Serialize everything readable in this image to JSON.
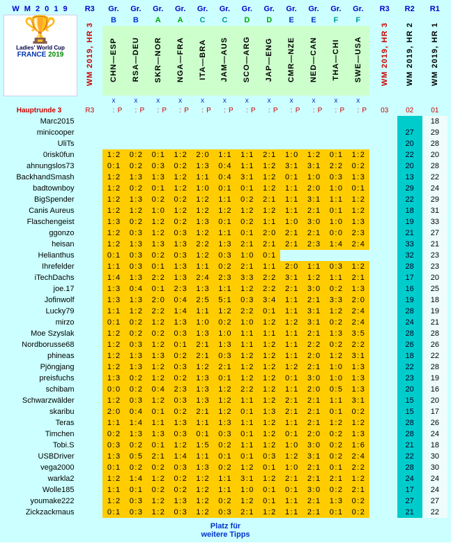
{
  "title": "W M   2 0 1 9",
  "header": {
    "r3": "R3",
    "gr": "Gr.",
    "r2": "R2",
    "r1": "R1"
  },
  "logo": {
    "caption": "Ladies' World Cup",
    "france": "FRANCE",
    "year": "2019"
  },
  "vlabels": {
    "wmhr3": "WM 2019, HR 3",
    "hr2": "WM  2019, HR 2",
    "hr1": "WM  2019, HR 1"
  },
  "groups": [
    "B",
    "B",
    "A",
    "A",
    "C",
    "C",
    "D",
    "D",
    "E",
    "E",
    "F",
    "F"
  ],
  "matches": [
    "CHN—ESP",
    "RSA—DEU",
    "SKR—NOR",
    "NGA—FRA",
    "ITA—BRA",
    "JAM—AUS",
    "SCO—ARG",
    "JAP—ENG",
    "CMR—NZE",
    "NED—CAN",
    "THA—CHI",
    "SWE—USA"
  ],
  "round_label": "Hauptrunde  3",
  "r_nums": {
    "r3": "03",
    "r2": "02",
    "r1": "01"
  },
  "footer1": "Platz für",
  "footer2": "weitere Tipps",
  "rows": [
    {
      "n": "Marc2015",
      "s": [
        "",
        "",
        "",
        "",
        "",
        "",
        "",
        "",
        "",
        "",
        "",
        ""
      ],
      "r3": "",
      "r2": "",
      "r1": "18"
    },
    {
      "n": "minicooper",
      "s": [
        "",
        "",
        "",
        "",
        "",
        "",
        "",
        "",
        "",
        "",
        "",
        ""
      ],
      "r3": "",
      "r2": "27",
      "r1": "29"
    },
    {
      "n": "UliTs",
      "s": [
        "",
        "",
        "",
        "",
        "",
        "",
        "",
        "",
        "",
        "",
        "",
        ""
      ],
      "r3": "",
      "r2": "20",
      "r1": "28"
    },
    {
      "n": "0risk0fun",
      "s": [
        "1:2",
        "0:2",
        "0:1",
        "1:2",
        "2:0",
        "1:1",
        "1:1",
        "2:1",
        "1:0",
        "1:2",
        "0:1",
        "1:2"
      ],
      "r3": "",
      "r2": "22",
      "r1": "20"
    },
    {
      "n": "ahnungslos73",
      "s": [
        "0:1",
        "0:2",
        "0:3",
        "0:2",
        "1:3",
        "0:4",
        "1:1",
        "1:2",
        "3:1",
        "3:1",
        "2:2",
        "0:2"
      ],
      "r3": "",
      "r2": "20",
      "r1": "28"
    },
    {
      "n": "BackhandSmash",
      "s": [
        "1:2",
        "1:3",
        "1:3",
        "1:2",
        "1:1",
        "0:4",
        "3:1",
        "1:2",
        "0:1",
        "1:0",
        "0:3",
        "1:3"
      ],
      "r3": "",
      "r2": "13",
      "r1": "22"
    },
    {
      "n": "badtownboy",
      "s": [
        "1:2",
        "0:2",
        "0:1",
        "1:2",
        "1:0",
        "0:1",
        "0:1",
        "1:2",
        "1:1",
        "2:0",
        "1:0",
        "0:1"
      ],
      "r3": "",
      "r2": "29",
      "r1": "24"
    },
    {
      "n": "BigSpender",
      "s": [
        "1:2",
        "1:3",
        "0:2",
        "0:2",
        "1:2",
        "1:1",
        "0:2",
        "2:1",
        "1:1",
        "3:1",
        "1:1",
        "1:2"
      ],
      "r3": "",
      "r2": "22",
      "r1": "29"
    },
    {
      "n": "Canis Aureus",
      "s": [
        "1:2",
        "1:2",
        "1:0",
        "1:2",
        "1:2",
        "1:2",
        "1:2",
        "1:2",
        "1:1",
        "2:1",
        "0:1",
        "1:2"
      ],
      "r3": "",
      "r2": "18",
      "r1": "31"
    },
    {
      "n": "Flaschengeist",
      "s": [
        "1:3",
        "0:2",
        "1:2",
        "0:2",
        "1:3",
        "0:1",
        "0:2",
        "1:1",
        "1:0",
        "3:0",
        "1:0",
        "1:3"
      ],
      "r3": "",
      "r2": "19",
      "r1": "33"
    },
    {
      "n": "ggonzo",
      "s": [
        "1:2",
        "0:3",
        "1:2",
        "0:3",
        "1:2",
        "1:1",
        "0:1",
        "2:0",
        "2:1",
        "2:1",
        "0:0",
        "2:3"
      ],
      "r3": "",
      "r2": "21",
      "r1": "27"
    },
    {
      "n": "heisan",
      "s": [
        "1:2",
        "1:3",
        "1:3",
        "1:3",
        "2:2",
        "1:3",
        "2:1",
        "2:1",
        "2:1",
        "2:3",
        "1:4",
        "2:4"
      ],
      "r3": "",
      "r2": "33",
      "r1": "21"
    },
    {
      "n": "Helianthus",
      "s": [
        "0:1",
        "0:3",
        "0:2",
        "0:3",
        "1:2",
        "0:3",
        "1:0",
        "0:1",
        "",
        "",
        "",
        ""
      ],
      "r3": "",
      "r2": "32",
      "r1": "23"
    },
    {
      "n": "Ihrefelder",
      "s": [
        "1:1",
        "0:3",
        "0:1",
        "1:3",
        "1:1",
        "0:2",
        "2:1",
        "1:1",
        "2:0",
        "1:1",
        "0:3",
        "1:2"
      ],
      "r3": "",
      "r2": "28",
      "r1": "23"
    },
    {
      "n": "iTechDachs",
      "s": [
        "1:4",
        "1:3",
        "2:2",
        "1:3",
        "2:4",
        "2:3",
        "3:3",
        "2:2",
        "3:1",
        "1:2",
        "1:1",
        "2:1"
      ],
      "r3": "",
      "r2": "17",
      "r1": "20"
    },
    {
      "n": "joe.17",
      "s": [
        "1:3",
        "0:4",
        "0:1",
        "2:3",
        "1:3",
        "1:1",
        "1:2",
        "2:2",
        "2:1",
        "3:0",
        "0:2",
        "1:3"
      ],
      "r3": "",
      "r2": "16",
      "r1": "25"
    },
    {
      "n": "Jofinwolf",
      "s": [
        "1:3",
        "1:3",
        "2:0",
        "0:4",
        "2:5",
        "5:1",
        "0:3",
        "3:4",
        "1:1",
        "2:1",
        "3:3",
        "2:0"
      ],
      "r3": "",
      "r2": "19",
      "r1": "18"
    },
    {
      "n": "Lucky79",
      "s": [
        "1:1",
        "1:2",
        "2:2",
        "1:4",
        "1:1",
        "1:2",
        "2:2",
        "0:1",
        "1:1",
        "3:1",
        "1:2",
        "2:4"
      ],
      "r3": "",
      "r2": "28",
      "r1": "19"
    },
    {
      "n": "mirzo",
      "s": [
        "0:1",
        "0:2",
        "1:2",
        "1:3",
        "1:0",
        "0:2",
        "1:0",
        "1:2",
        "1:2",
        "3:1",
        "0:2",
        "2:4"
      ],
      "r3": "",
      "r2": "24",
      "r1": "21"
    },
    {
      "n": "Moe Szyslak",
      "s": [
        "1:2",
        "0:2",
        "0:2",
        "0:3",
        "1:3",
        "1:0",
        "1:1",
        "1:1",
        "1:1",
        "2:1",
        "1:3",
        "3:5"
      ],
      "r3": "",
      "r2": "28",
      "r1": "28"
    },
    {
      "n": "Nordborusse68",
      "s": [
        "1:2",
        "0:3",
        "1:2",
        "0:1",
        "2:1",
        "1:3",
        "1:1",
        "1:2",
        "1:1",
        "2:2",
        "0:2",
        "2:2"
      ],
      "r3": "",
      "r2": "26",
      "r1": "26"
    },
    {
      "n": "phineas",
      "s": [
        "1:2",
        "1:3",
        "1:3",
        "0:2",
        "2:1",
        "0:3",
        "1:2",
        "1:2",
        "1:1",
        "2:0",
        "1:2",
        "3:1"
      ],
      "r3": "",
      "r2": "18",
      "r1": "22"
    },
    {
      "n": "Pjöngjang",
      "s": [
        "1:2",
        "1:3",
        "1:2",
        "0:3",
        "1:2",
        "2:1",
        "1:2",
        "1:2",
        "1:2",
        "2:1",
        "1:0",
        "1:3"
      ],
      "r3": "",
      "r2": "22",
      "r1": "28"
    },
    {
      "n": "preisfuchs",
      "s": [
        "1:3",
        "0:2",
        "1:2",
        "0:2",
        "1:3",
        "0:1",
        "1:2",
        "1:2",
        "0:1",
        "3:0",
        "1:0",
        "1:3"
      ],
      "r3": "",
      "r2": "23",
      "r1": "19"
    },
    {
      "n": "schibam",
      "s": [
        "0:0",
        "0:2",
        "0:4",
        "2:3",
        "1:3",
        "1:2",
        "2:2",
        "1:2",
        "1:1",
        "2:0",
        "0:5",
        "1:3"
      ],
      "r3": "",
      "r2": "20",
      "r1": "16"
    },
    {
      "n": "Schwarzwälder",
      "s": [
        "1:2",
        "0:3",
        "1:2",
        "0:3",
        "1:3",
        "1:2",
        "1:1",
        "1:2",
        "2:1",
        "2:1",
        "1:1",
        "3:1"
      ],
      "r3": "",
      "r2": "15",
      "r1": "20"
    },
    {
      "n": "skaribu",
      "s": [
        "2:0",
        "0:4",
        "0:1",
        "0:2",
        "2:1",
        "1:2",
        "0:1",
        "1:3",
        "2:1",
        "2:1",
        "0:1",
        "0:2"
      ],
      "r3": "",
      "r2": "15",
      "r1": "17"
    },
    {
      "n": "Teras",
      "s": [
        "1:1",
        "1:4",
        "1:1",
        "1:3",
        "1:1",
        "1:3",
        "1:1",
        "1:2",
        "1:1",
        "2:1",
        "1:2",
        "1:2"
      ],
      "r3": "",
      "r2": "28",
      "r1": "26"
    },
    {
      "n": "Timchen",
      "s": [
        "0:2",
        "1:3",
        "1:3",
        "0:3",
        "0:1",
        "0:3",
        "0:1",
        "1:2",
        "0:1",
        "2:0",
        "0:2",
        "1:3"
      ],
      "r3": "",
      "r2": "28",
      "r1": "24"
    },
    {
      "n": "Tobi.S",
      "s": [
        "0:3",
        "0:2",
        "0:1",
        "1:2",
        "1:5",
        "0:2",
        "1:1",
        "1:2",
        "1:0",
        "3:0",
        "0:2",
        "1:6"
      ],
      "r3": "",
      "r2": "21",
      "r1": "18"
    },
    {
      "n": "USBDriver",
      "s": [
        "1:3",
        "0:5",
        "2:1",
        "1:4",
        "1:1",
        "0:1",
        "0:1",
        "0:3",
        "1:2",
        "3:1",
        "0:2",
        "2:4"
      ],
      "r3": "",
      "r2": "22",
      "r1": "30"
    },
    {
      "n": "vega2000",
      "s": [
        "0:1",
        "0:2",
        "0:2",
        "0:3",
        "1:3",
        "0:2",
        "1:2",
        "0:1",
        "1:0",
        "2:1",
        "0:1",
        "2:2"
      ],
      "r3": "",
      "r2": "28",
      "r1": "30"
    },
    {
      "n": "warkla2",
      "s": [
        "1:2",
        "1:4",
        "1:2",
        "0:2",
        "1:2",
        "1:1",
        "3:1",
        "1:2",
        "2:1",
        "2:1",
        "2:1",
        "1:2"
      ],
      "r3": "",
      "r2": "24",
      "r1": "24"
    },
    {
      "n": "Wolle185",
      "s": [
        "1:1",
        "0:1",
        "0:2",
        "0:2",
        "1:2",
        "1:1",
        "1:0",
        "0:1",
        "0:1",
        "3:0",
        "0:2",
        "2:1"
      ],
      "r3": "",
      "r2": "17",
      "r1": "24"
    },
    {
      "n": "youmake222",
      "s": [
        "1:2",
        "0:3",
        "1:2",
        "1:3",
        "1:2",
        "0:2",
        "1:2",
        "0:1",
        "1:1",
        "2:1",
        "1:3",
        "0:2"
      ],
      "r3": "",
      "r2": "27",
      "r1": "27"
    },
    {
      "n": "Zickzackmaus",
      "s": [
        "0:1",
        "0:3",
        "1:2",
        "0:3",
        "1:2",
        "0:3",
        "2:1",
        "1:2",
        "1:1",
        "2:1",
        "0:1",
        "0:2"
      ],
      "r3": "",
      "r2": "21",
      "r1": "22"
    }
  ],
  "colors": {
    "bg": "#ccffff",
    "match_bg": "#ccffcc",
    "score_bg": "#ffcc00",
    "r2_bg": "#00cccc",
    "red": "#cc0000",
    "blue": "#0033cc"
  }
}
